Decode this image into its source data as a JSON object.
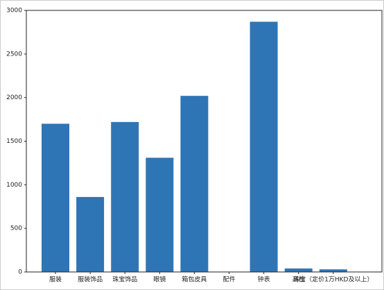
{
  "chart_data": {
    "type": "bar",
    "categories": [
      "服装",
      "服装饰品",
      "珠宝饰品",
      "眼镜",
      "箱包皮具",
      "配件",
      "钟表",
      "高档",
      "珠宝（定价1万HKD及以上）"
    ],
    "values": [
      1700,
      860,
      1720,
      1310,
      2020,
      0,
      2870,
      40,
      30
    ],
    "color": "#2e75b6",
    "ylim": [
      0,
      3000
    ],
    "yticks": [
      0,
      500,
      1000,
      1500,
      2000,
      2500,
      3000
    ],
    "grid": false
  }
}
